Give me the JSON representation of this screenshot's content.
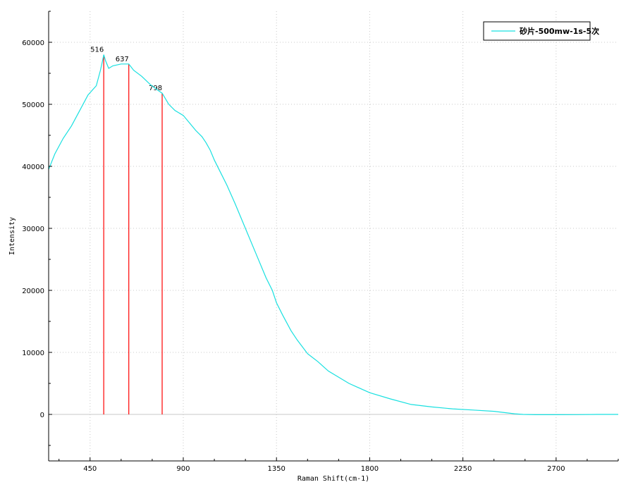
{
  "chart_data": {
    "type": "line",
    "xlabel": "Raman Shift(cm-1)",
    "ylabel": "Intensity",
    "xlim": [
      250,
      3000
    ],
    "ylim": [
      -7500,
      65000
    ],
    "xticks": [
      450,
      900,
      1350,
      1800,
      2250,
      2700
    ],
    "yticks": [
      0,
      10000,
      20000,
      30000,
      40000,
      50000,
      60000
    ],
    "grid": true,
    "legend_position": "top-right",
    "colors": {
      "series": "#19e0e0",
      "peaks": "#ff0000",
      "zero_line": "#c8c8c8"
    },
    "series": [
      {
        "name": "砂片-500mw-1s-5次",
        "x": [
          250,
          280,
          320,
          360,
          400,
          440,
          480,
          500,
          510,
          516,
          525,
          540,
          560,
          600,
          637,
          660,
          700,
          740,
          780,
          798,
          830,
          860,
          900,
          930,
          960,
          990,
          1010,
          1030,
          1050,
          1080,
          1110,
          1150,
          1200,
          1250,
          1300,
          1330,
          1350,
          1380,
          1420,
          1450,
          1500,
          1550,
          1600,
          1700,
          1800,
          1900,
          2000,
          2100,
          2200,
          2300,
          2400,
          2450,
          2500,
          2540,
          2600,
          2700,
          2800,
          2900,
          3000
        ],
        "y": [
          39500,
          42000,
          44500,
          46500,
          49000,
          51500,
          53000,
          55500,
          57000,
          58000,
          57000,
          55800,
          56200,
          56500,
          56500,
          55500,
          54500,
          53200,
          52200,
          51800,
          50000,
          49000,
          48200,
          47000,
          45800,
          44800,
          43800,
          42600,
          41000,
          39000,
          37000,
          34000,
          30000,
          26000,
          22000,
          20000,
          18000,
          16000,
          13500,
          12000,
          9800,
          8500,
          7000,
          5000,
          3500,
          2500,
          1600,
          1200,
          900,
          700,
          500,
          300,
          100,
          0,
          -50,
          -50,
          -30,
          0,
          0
        ]
      }
    ],
    "peaks": [
      {
        "label": "516",
        "x": 516,
        "y": 58000
      },
      {
        "label": "637",
        "x": 637,
        "y": 56500
      },
      {
        "label": "798",
        "x": 798,
        "y": 51800
      }
    ]
  }
}
